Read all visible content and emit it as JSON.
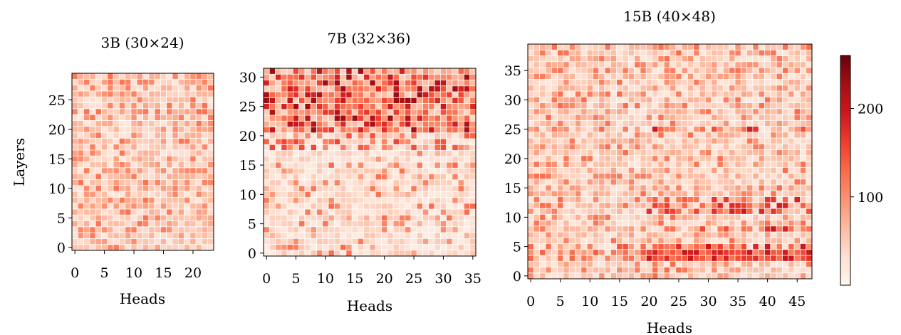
{
  "colormap": {
    "name": "Reds",
    "stops": [
      "#fff5f0",
      "#fee0d2",
      "#fcbba1",
      "#fc9272",
      "#fb6a4a",
      "#ef3b2c",
      "#cb181d",
      "#a50f15",
      "#67000d"
    ],
    "vmin": 0,
    "vmax": 260
  },
  "chart_data": [
    {
      "type": "heatmap",
      "title": "3B (30×24)",
      "rows": 30,
      "cols": 24,
      "xlabel": "Heads",
      "ylabel": "Layers",
      "xticks": [
        0,
        5,
        10,
        15,
        20
      ],
      "yticks": [
        0,
        5,
        10,
        15,
        20,
        25
      ],
      "value_range": [
        0,
        130
      ],
      "pattern": "mostly light pink (~20-80) with scattered medium red cells (~80-130), fairly uniform across layers"
    },
    {
      "type": "heatmap",
      "title": "7B (32×36)",
      "rows": 32,
      "cols": 36,
      "xlabel": "Heads",
      "ylabel": "",
      "xticks": [
        0,
        5,
        10,
        15,
        20,
        25,
        30,
        35
      ],
      "yticks": [
        0,
        5,
        10,
        15,
        20,
        25,
        30
      ],
      "value_range": [
        0,
        250
      ],
      "pattern": "layers 0-20 light (~15-90); layers 21-31 markedly darker with many dark red cells (~120-250)"
    },
    {
      "type": "heatmap",
      "title": "15B (40×48)",
      "rows": 40,
      "cols": 48,
      "xlabel": "Heads",
      "ylabel": "",
      "xticks": [
        0,
        5,
        10,
        15,
        20,
        25,
        30,
        35,
        40,
        45
      ],
      "yticks": [
        0,
        5,
        10,
        15,
        20,
        25,
        30,
        35
      ],
      "value_range": [
        0,
        200
      ],
      "pattern": "mostly light-to-medium red; darker band at layers 3-5, and darker cells at layers 8, 11-13, 25 toward heads 25-47"
    }
  ],
  "colorbar": {
    "ticks": [
      100,
      200
    ],
    "range": [
      0,
      260
    ]
  }
}
